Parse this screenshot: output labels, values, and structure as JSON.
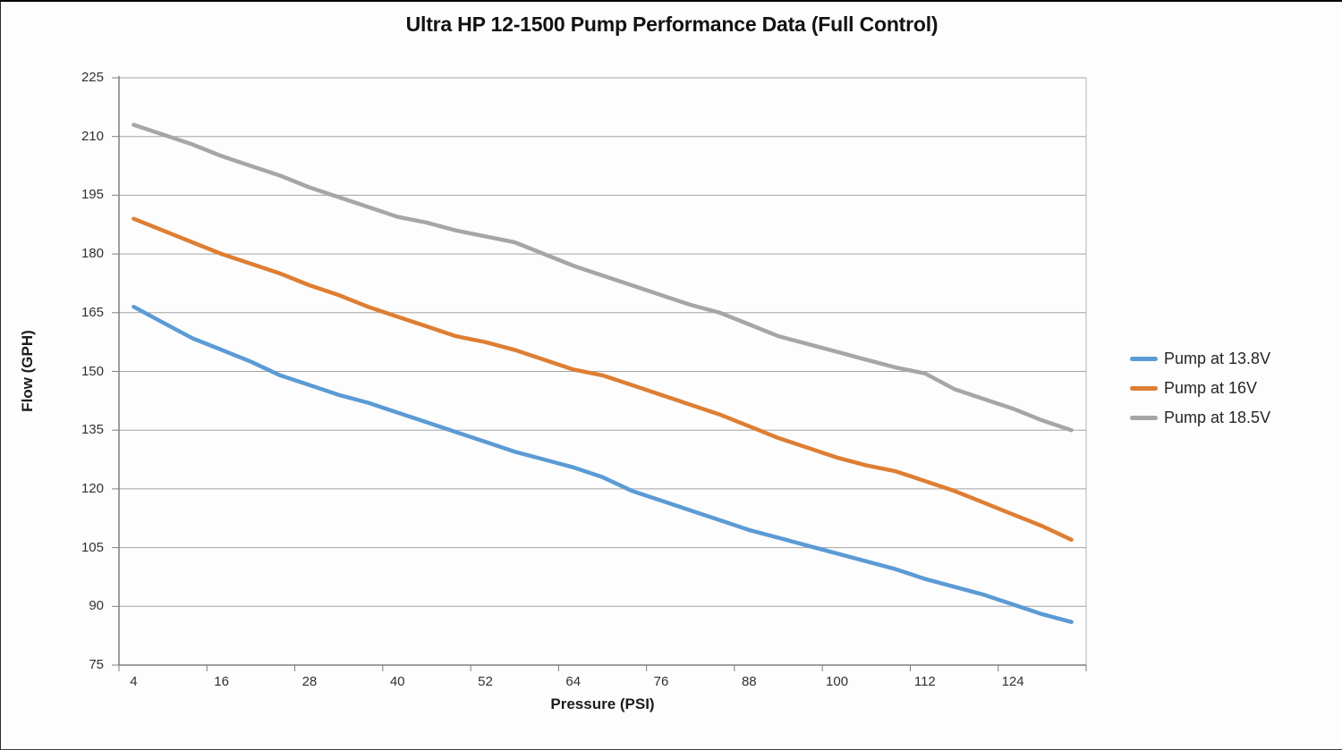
{
  "chart_data": {
    "type": "line",
    "title": "Ultra HP 12-1500 Pump Performance Data (Full Control)",
    "xlabel": "Pressure (PSI)",
    "ylabel": "Flow (GPH)",
    "x": [
      4,
      8,
      12,
      16,
      20,
      24,
      28,
      32,
      36,
      40,
      44,
      48,
      52,
      56,
      60,
      64,
      68,
      72,
      76,
      80,
      84,
      88,
      92,
      96,
      100,
      104,
      108,
      112,
      116,
      120,
      124,
      128,
      132
    ],
    "x_tick_labels": [
      4,
      16,
      28,
      40,
      52,
      64,
      76,
      88,
      100,
      112,
      124
    ],
    "y_ticks": [
      75,
      90,
      105,
      120,
      135,
      150,
      165,
      180,
      195,
      210,
      225
    ],
    "ylim": [
      75,
      225
    ],
    "xlim": [
      2,
      134
    ],
    "grid": "horizontal",
    "legend_position": "right",
    "series": [
      {
        "name": "Pump at 13.8V",
        "color": "#5B9BD5",
        "values": [
          166.5,
          162.5,
          158.5,
          155.5,
          152.5,
          149,
          146.5,
          144,
          142,
          139.5,
          137,
          134.5,
          132,
          129.5,
          127.5,
          125.5,
          123,
          119.5,
          117,
          114.5,
          112,
          109.5,
          107.5,
          105.5,
          103.5,
          101.5,
          99.5,
          97,
          95,
          93,
          90.5,
          88,
          86
        ]
      },
      {
        "name": "Pump at 16V",
        "color": "#DE7E33",
        "values": [
          189,
          186,
          183,
          180,
          177.5,
          175,
          172,
          169.5,
          166.5,
          164,
          161.5,
          159,
          157.5,
          155.5,
          153,
          150.5,
          149,
          146.5,
          144,
          141.5,
          139,
          136,
          133,
          130.5,
          128,
          126,
          124.5,
          122,
          119.5,
          116.5,
          113.5,
          110.5,
          107
        ]
      },
      {
        "name": "Pump at 18.5V",
        "color": "#A6A6A6",
        "values": [
          213,
          210.5,
          208,
          205,
          202.5,
          200,
          197,
          194.5,
          192,
          189.5,
          188,
          186,
          184.5,
          183,
          180,
          177,
          174.5,
          172,
          169.5,
          167,
          165,
          162,
          159,
          157,
          155,
          153,
          151,
          149.5,
          145.5,
          143,
          140.5,
          137.5,
          135
        ]
      }
    ],
    "style": {
      "grid_color": "#a3a3a3",
      "axis_color": "#7f7f7f",
      "tick_color": "#7f7f7f",
      "plot_right_border_color": "#b5b5b5",
      "line_width": 4.5
    }
  }
}
